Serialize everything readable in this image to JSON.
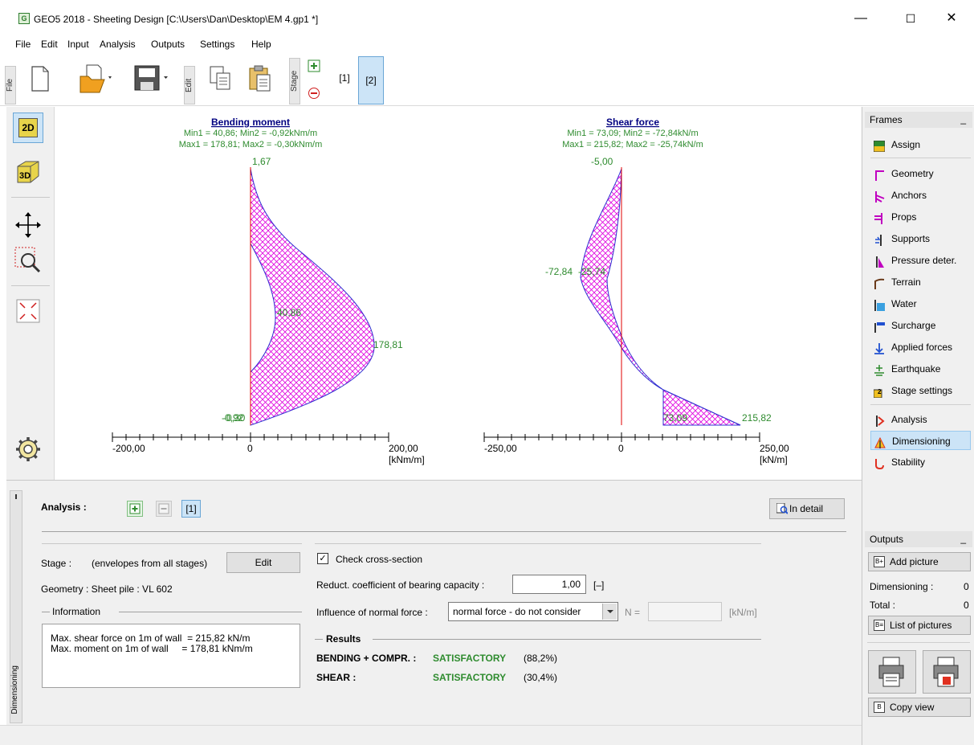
{
  "window": {
    "title": "GEO5 2018 - Sheeting Design [C:\\Users\\Dan\\Desktop\\EM 4.gp1 *]",
    "app_icon_letter": "G",
    "minimize": "—",
    "maximize": "☐",
    "close": "✕"
  },
  "menu": [
    "File",
    "Edit",
    "Input",
    "Analysis",
    "Outputs",
    "Settings",
    "Help"
  ],
  "toolbar": {
    "file_label": "File",
    "edit_label": "Edit",
    "stage_label": "Stage",
    "stage1": "[1]",
    "stage2": "[2]"
  },
  "charts": {
    "bending": {
      "title": "Bending moment",
      "line1": "Min1 = 40,86; Min2 = -0,92kNm/m",
      "line2": "Max1 = 178,81; Max2 = -0,30kNm/m",
      "top_label": "1,67",
      "mid_label": "40,86",
      "max_label": "178,81",
      "bottom_label": "-0,92",
      "bottom_label2": "-0,30",
      "axis_left": "-200,00",
      "axis_zero": "0",
      "axis_right": "200,00",
      "unit": "[kNm/m]"
    },
    "shear": {
      "title": "Shear force",
      "line1": "Min1 = 73,09; Min2 = -72,84kN/m",
      "line2": "Max1 = 215,82; Max2 = -25,74kN/m",
      "top_label": "-5,00",
      "min_label": "-72,84",
      "min_label2": "-25,74",
      "low_label": "73,09",
      "max_label": "215,82",
      "axis_left": "-250,00",
      "axis_zero": "0",
      "axis_right": "250,00",
      "unit": "[kN/m]"
    }
  },
  "chart_data": [
    {
      "type": "area",
      "title": "Bending moment",
      "xlabel": "[kNm/m]",
      "xlim": [
        -200,
        200
      ],
      "annotations": [
        "1,67",
        "40,86",
        "178,81",
        "-0,92",
        "-0,30"
      ],
      "min1": 40.86,
      "min2": -0.92,
      "max1": 178.81,
      "max2": -0.3
    },
    {
      "type": "area",
      "title": "Shear force",
      "xlabel": "[kN/m]",
      "xlim": [
        -250,
        250
      ],
      "annotations": [
        "-5,00",
        "-72,84",
        "-25,74",
        "73,09",
        "215,82"
      ],
      "min1": 73.09,
      "min2": -72.84,
      "max1": 215.82,
      "max2": -25.74
    }
  ],
  "frames": {
    "header": "Frames",
    "items": [
      "Assign",
      "Geometry",
      "Anchors",
      "Props",
      "Supports",
      "Pressure deter.",
      "Terrain",
      "Water",
      "Surcharge",
      "Applied forces",
      "Earthquake",
      "Stage settings",
      "Analysis",
      "Dimensioning",
      "Stability"
    ]
  },
  "outputs": {
    "header": "Outputs",
    "add_picture": "Add picture",
    "dimensioning_label": "Dimensioning :",
    "dimensioning_count": "0",
    "total_label": "Total :",
    "total_count": "0",
    "list_pictures": "List of pictures",
    "copy_view": "Copy view"
  },
  "analysis": {
    "side_label": "Dimensioning",
    "title": "Analysis :",
    "tab1": "[1]",
    "in_detail": "In detail",
    "stage_label": "Stage :",
    "stage_value": "(envelopes from all stages)",
    "edit": "Edit",
    "geometry": "Geometry : Sheet pile : VL 602",
    "info_header": "Information",
    "info_line1": "Max. shear force on 1m of wall  = 215,82 kN/m",
    "info_line2": "Max. moment on 1m of wall     = 178,81 kNm/m",
    "check_label": "Check cross-section",
    "check_mark": "✓",
    "reduct_label": "Reduct. coefficient of bearing capacity :",
    "reduct_value": "1,00",
    "reduct_unit": "[–]",
    "normal_label": "Influence of normal force :",
    "normal_value": "normal force - do not consider",
    "n_label": "N =",
    "n_unit": "[kN/m]",
    "results_header": "Results",
    "r1_label": "BENDING + COMPR. :",
    "r1_status": "SATISFACTORY",
    "r1_pct": "(88,2%)",
    "r2_label": "SHEAR :",
    "r2_status": "SATISFACTORY",
    "r2_pct": "(30,4%)"
  },
  "left_tools": {
    "btn2d": "2D",
    "btn3d": "3D"
  }
}
